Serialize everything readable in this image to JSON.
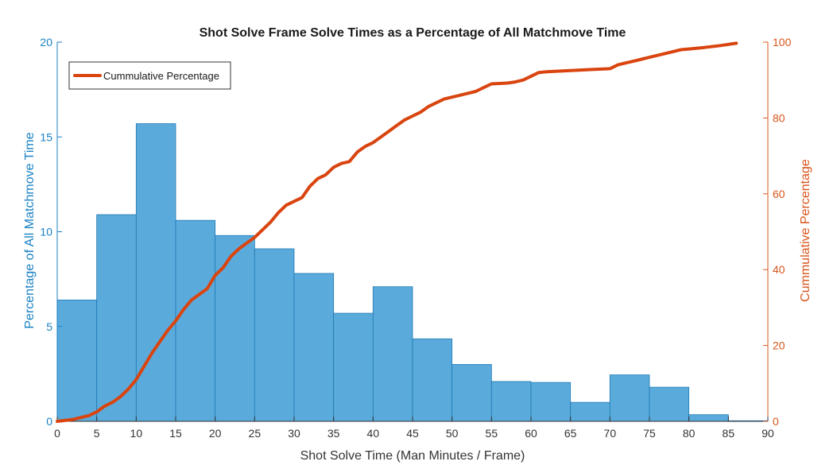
{
  "chart_data": {
    "type": "bar",
    "title": "Shot Solve Frame Solve Times as a Percentage of All Matchmove Time",
    "xlabel": "Shot Solve Time (Man Minutes / Frame)",
    "ylabel": "Percentage of All Matchmove Time",
    "y2label": "Cummulative Percentage",
    "xlim": [
      0,
      90
    ],
    "ylim": [
      0,
      20
    ],
    "y2lim": [
      0,
      100
    ],
    "x_ticks": [
      0,
      5,
      10,
      15,
      20,
      25,
      30,
      35,
      40,
      45,
      50,
      55,
      60,
      65,
      70,
      75,
      80,
      85,
      90
    ],
    "y_ticks": [
      0,
      5,
      10,
      15,
      20
    ],
    "y2_ticks": [
      0,
      20,
      40,
      60,
      80,
      100
    ],
    "colors": {
      "bars": "#5aabdc",
      "bar_edge": "#1f78b4",
      "line": "#d9440f",
      "left_axis": "#1a82c4",
      "right_axis": "#d9541a"
    },
    "bins": [
      {
        "x0": 0,
        "x1": 5,
        "value": 6.4
      },
      {
        "x0": 5,
        "x1": 10,
        "value": 10.9
      },
      {
        "x0": 10,
        "x1": 15,
        "value": 15.7
      },
      {
        "x0": 15,
        "x1": 20,
        "value": 10.6
      },
      {
        "x0": 20,
        "x1": 25,
        "value": 9.8
      },
      {
        "x0": 25,
        "x1": 30,
        "value": 9.1
      },
      {
        "x0": 30,
        "x1": 35,
        "value": 7.8
      },
      {
        "x0": 35,
        "x1": 40,
        "value": 5.7
      },
      {
        "x0": 40,
        "x1": 45,
        "value": 7.1
      },
      {
        "x0": 45,
        "x1": 50,
        "value": 4.35
      },
      {
        "x0": 50,
        "x1": 55,
        "value": 3.0
      },
      {
        "x0": 55,
        "x1": 60,
        "value": 2.1
      },
      {
        "x0": 60,
        "x1": 65,
        "value": 2.05
      },
      {
        "x0": 65,
        "x1": 70,
        "value": 1.0
      },
      {
        "x0": 70,
        "x1": 75,
        "value": 2.45
      },
      {
        "x0": 75,
        "x1": 80,
        "value": 1.8
      },
      {
        "x0": 80,
        "x1": 85,
        "value": 0.35
      },
      {
        "x0": 85,
        "x1": 90,
        "value": 0.03
      }
    ],
    "series": [
      {
        "name": "Cummulative Percentage",
        "axis": "right",
        "x": [
          0,
          2,
          4,
          5,
          6,
          7,
          8,
          9,
          10,
          11,
          12,
          13,
          14,
          15,
          16,
          17,
          18,
          19,
          20,
          21,
          22,
          23,
          24,
          25,
          26,
          27,
          28,
          29,
          30,
          31,
          32,
          33,
          34,
          35,
          36,
          37,
          38,
          39,
          40,
          41,
          42,
          43,
          44,
          45,
          46,
          47,
          48,
          49,
          50,
          52,
          53,
          54,
          55,
          57,
          58,
          59,
          60,
          61,
          62,
          64,
          66,
          68,
          70,
          71,
          72,
          73,
          74,
          75,
          76,
          77,
          78,
          79,
          80,
          82,
          84,
          86
        ],
        "values": [
          0,
          0.5,
          1.5,
          2.5,
          4,
          5,
          6.5,
          8.5,
          11,
          14.5,
          18,
          21,
          24,
          26.5,
          29.5,
          32,
          33.5,
          35,
          38.5,
          40.5,
          43.5,
          45.5,
          47,
          48.5,
          50.5,
          52.5,
          55,
          57,
          58,
          59,
          62,
          64,
          65,
          67,
          68,
          68.5,
          71,
          72.5,
          73.5,
          75,
          76.5,
          78,
          79.5,
          80.5,
          81.5,
          83,
          84,
          85,
          85.5,
          86.5,
          87,
          88,
          89,
          89.2,
          89.5,
          90,
          91,
          92,
          92.2,
          92.4,
          92.6,
          92.8,
          93,
          94,
          94.5,
          95,
          95.5,
          96,
          96.5,
          97,
          97.5,
          98,
          98.2,
          98.6,
          99.1,
          99.7
        ]
      }
    ],
    "legend": {
      "placement": "top-left",
      "entries": [
        "Cummulative Percentage"
      ]
    }
  }
}
